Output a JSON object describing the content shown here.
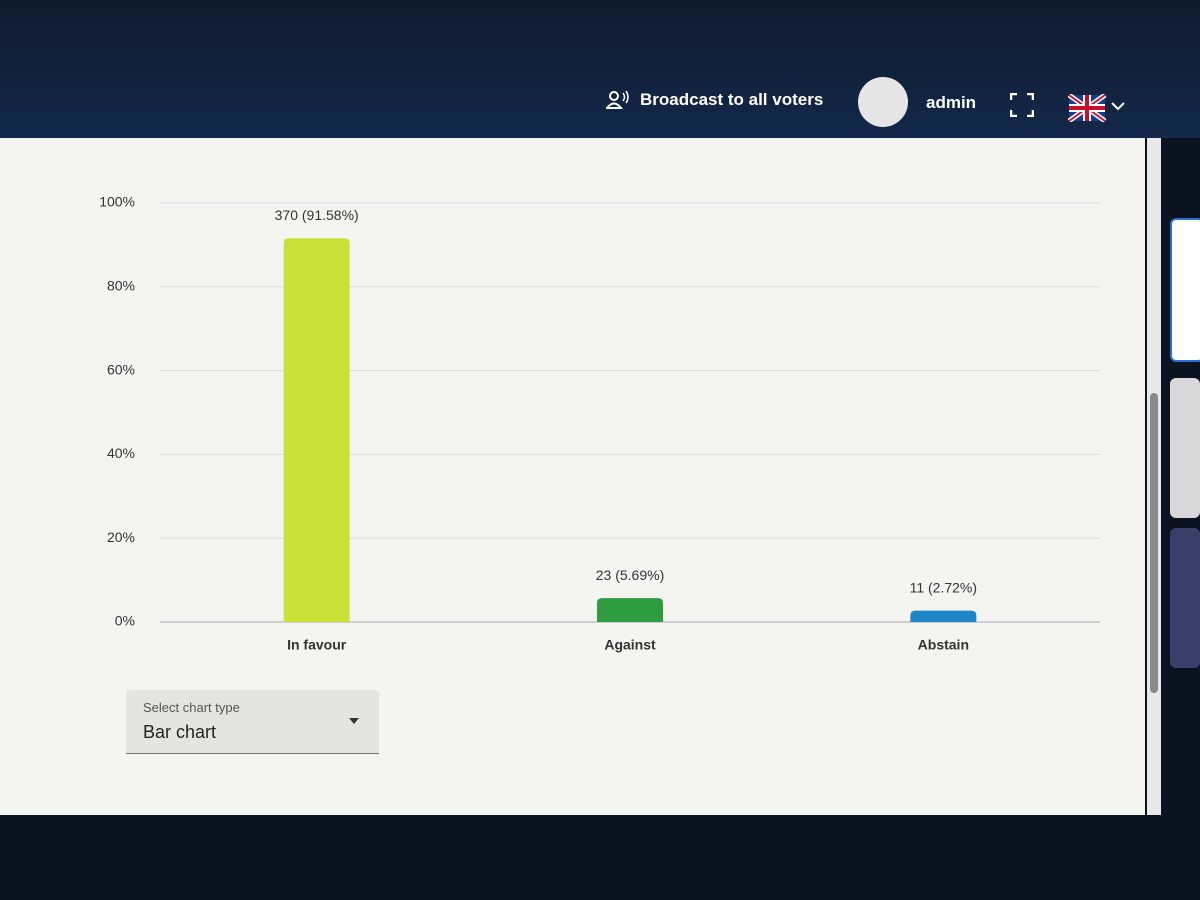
{
  "header": {
    "broadcast": "Broadcast to all voters",
    "user": "admin"
  },
  "chart_data": {
    "type": "bar",
    "categories": [
      "In favour",
      "Against",
      "Abstain"
    ],
    "values": [
      91.58,
      5.69,
      2.72
    ],
    "value_labels": [
      "370 (91.58%)",
      "23 (5.69%)",
      "11 (2.72%)"
    ],
    "colors": [
      "#c9e23a",
      "#2e9c3f",
      "#1f86c9"
    ],
    "ylim": [
      0,
      100
    ],
    "yticks": [
      {
        "value": 0,
        "label": "0%"
      },
      {
        "value": 20,
        "label": "20%"
      },
      {
        "value": 40,
        "label": "40%"
      },
      {
        "value": 60,
        "label": "60%"
      },
      {
        "value": 80,
        "label": "80%"
      },
      {
        "value": 100,
        "label": "100%"
      }
    ],
    "grid": true
  },
  "chart_type_select": {
    "label": "Select chart type",
    "value": "Bar chart"
  }
}
